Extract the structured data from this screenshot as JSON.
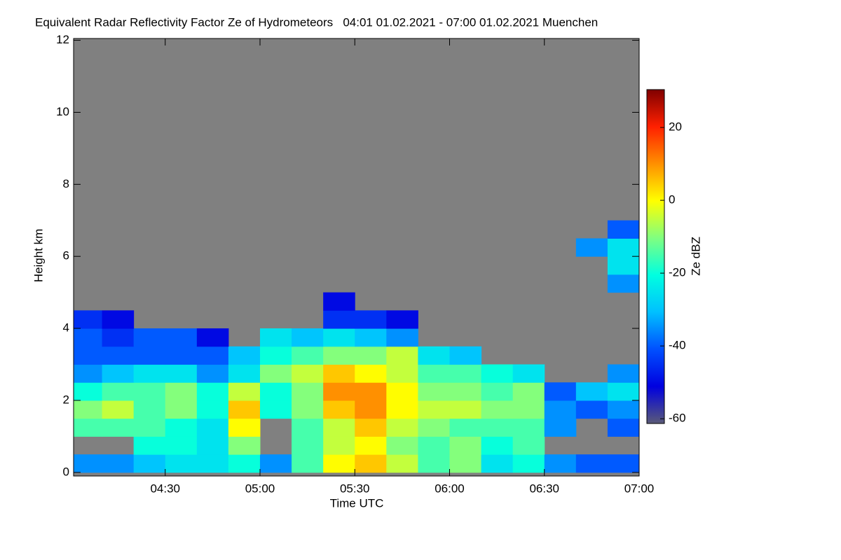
{
  "chart_data": {
    "type": "heatmap",
    "title": "Equivalent Radar Reflectivity Factor Ze of Hydrometeors   04:01 01.02.2021 - 07:00 01.02.2021 Muenchen",
    "xlabel": "Time UTC",
    "ylabel": "Height km",
    "colorbar_label": "Ze dBZ",
    "xlim": [
      "04:01",
      "07:00"
    ],
    "xticks": [
      "04:30",
      "05:00",
      "05:30",
      "06:00",
      "06:30",
      "07:00"
    ],
    "ylim": [
      -0.1,
      12.05
    ],
    "yticks": [
      0,
      2,
      4,
      6,
      8,
      10,
      12
    ],
    "zlim": [
      -61.3,
      30.4
    ],
    "zticks": [
      -60,
      -40,
      -20,
      0,
      20
    ],
    "no_data_color": "#808080",
    "colormap": [
      "#5a5a78",
      "#0000e0",
      "#0050ff",
      "#00c0ff",
      "#00ffe0",
      "#80ff80",
      "#ffff00",
      "#ff9000",
      "#ff2000",
      "#800000"
    ],
    "x_bins": [
      "04:01",
      "04:10",
      "04:20",
      "04:30",
      "04:40",
      "04:50",
      "05:00",
      "05:10",
      "05:20",
      "05:30",
      "05:40",
      "05:50",
      "06:00",
      "06:10",
      "06:20",
      "06:30",
      "06:40",
      "06:50",
      "07:00"
    ],
    "y_bins": [
      0,
      0.5,
      1,
      1.5,
      2,
      2.5,
      3,
      3.5,
      4,
      4.5,
      5,
      5.5,
      6,
      6.5,
      7
    ],
    "z": [
      [
        -35,
        -35,
        -30,
        -25,
        -25,
        -20,
        -35,
        -15,
        0,
        5,
        -5,
        -15,
        -10,
        -25,
        -20,
        -35,
        -40,
        -40
      ],
      [
        null,
        null,
        -20,
        -20,
        -25,
        -10,
        null,
        -15,
        -5,
        0,
        -10,
        -15,
        -10,
        -20,
        -15,
        null,
        null,
        null
      ],
      [
        -15,
        -15,
        -15,
        -20,
        -25,
        0,
        null,
        -15,
        -5,
        5,
        -5,
        -10,
        -15,
        -15,
        -15,
        -35,
        null,
        -40
      ],
      [
        -10,
        -5,
        -15,
        -10,
        -20,
        5,
        -20,
        -10,
        5,
        10,
        0,
        -5,
        -5,
        -10,
        -10,
        -35,
        -40,
        -35
      ],
      [
        -20,
        -15,
        -15,
        -10,
        -20,
        -5,
        -20,
        -10,
        10,
        10,
        0,
        -10,
        -10,
        -15,
        -10,
        -40,
        -30,
        -25
      ],
      [
        -35,
        -30,
        -25,
        -25,
        -35,
        -25,
        -10,
        -5,
        5,
        0,
        -5,
        -15,
        -15,
        -20,
        -25,
        null,
        null,
        -35
      ],
      [
        -40,
        -40,
        -40,
        -40,
        -40,
        -30,
        -20,
        -15,
        -10,
        -10,
        -5,
        -25,
        -30,
        null,
        null,
        null,
        null,
        null
      ],
      [
        -40,
        -45,
        -40,
        -40,
        -50,
        null,
        -25,
        -30,
        -25,
        -30,
        -35,
        null,
        null,
        null,
        null,
        null,
        null,
        null
      ],
      [
        -45,
        -50,
        null,
        null,
        null,
        null,
        null,
        null,
        -45,
        -45,
        -50,
        null,
        null,
        null,
        null,
        null,
        null,
        null
      ],
      [
        null,
        null,
        null,
        null,
        null,
        null,
        null,
        null,
        -50,
        null,
        null,
        null,
        null,
        null,
        null,
        null,
        null,
        null
      ],
      [
        null,
        null,
        null,
        null,
        null,
        null,
        null,
        null,
        null,
        null,
        null,
        null,
        null,
        null,
        null,
        null,
        null,
        -35
      ],
      [
        null,
        null,
        null,
        null,
        null,
        null,
        null,
        null,
        null,
        null,
        null,
        null,
        null,
        null,
        null,
        null,
        null,
        -25
      ],
      [
        null,
        null,
        null,
        null,
        null,
        null,
        null,
        null,
        null,
        null,
        null,
        null,
        null,
        null,
        null,
        null,
        -35,
        -25
      ],
      [
        null,
        null,
        null,
        null,
        null,
        null,
        null,
        null,
        null,
        null,
        null,
        null,
        null,
        null,
        null,
        null,
        null,
        -40
      ]
    ]
  }
}
